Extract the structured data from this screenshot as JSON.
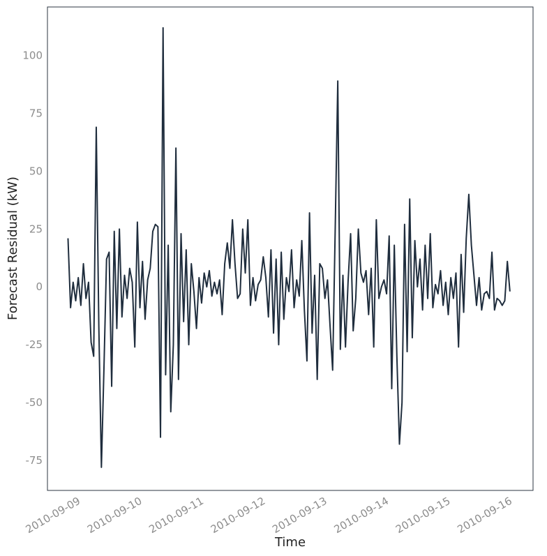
{
  "chart_data": {
    "type": "line",
    "xlabel": "Time",
    "ylabel": "Forecast Residual (kW)",
    "xlim": [
      -8,
      181
    ],
    "xticks": [
      {
        "value": 4,
        "label": "2010-09-09"
      },
      {
        "value": 28,
        "label": "2010-09-10"
      },
      {
        "value": 52,
        "label": "2010-09-11"
      },
      {
        "value": 76,
        "label": "2010-09-12"
      },
      {
        "value": 100,
        "label": "2010-09-13"
      },
      {
        "value": 124,
        "label": "2010-09-14"
      },
      {
        "value": 148,
        "label": "2010-09-15"
      },
      {
        "value": 172,
        "label": "2010-09-16"
      }
    ],
    "ylim": [
      -88,
      121
    ],
    "yticks": [
      -75,
      -50,
      -25,
      0,
      25,
      50,
      75,
      100
    ],
    "grid": false,
    "series": [
      {
        "color": "#1f2d3d",
        "values": [
          21,
          -9,
          2,
          -6,
          4,
          -8,
          10,
          -5,
          2,
          -24,
          -30,
          69,
          -17,
          -78,
          -35,
          12,
          15,
          -43,
          24,
          -18,
          25,
          -13,
          5,
          -5,
          8,
          2,
          -26,
          28,
          -9,
          11,
          -14,
          3,
          8,
          24,
          27,
          26,
          -65,
          112,
          -38,
          18,
          -54,
          -25,
          60,
          -40,
          23,
          -15,
          16,
          -25,
          10,
          -2,
          -18,
          4,
          -7,
          6,
          0,
          7,
          -4,
          2,
          -3,
          3,
          -12,
          10,
          19,
          8,
          29,
          10,
          -5,
          -3,
          25,
          6,
          29,
          -8,
          4,
          -6,
          1,
          3,
          13,
          4,
          -13,
          16,
          -20,
          12,
          -25,
          15,
          -14,
          4,
          -2,
          16,
          -9,
          3,
          -4,
          20,
          -10,
          -32,
          32,
          -20,
          5,
          -40,
          10,
          8,
          -5,
          3,
          -17,
          -36,
          25,
          89,
          -27,
          5,
          -26,
          2,
          23,
          -19,
          -5,
          25,
          6,
          2,
          7,
          -12,
          8,
          -26,
          29,
          -5,
          0,
          3,
          -3,
          22,
          -44,
          18,
          -30,
          -68,
          -50,
          27,
          -28,
          38,
          -22,
          20,
          0,
          12,
          -10,
          18,
          -5,
          23,
          -9,
          1,
          -3,
          7,
          -8,
          2,
          -12,
          4,
          -5,
          6,
          -26,
          14,
          -11,
          21,
          40,
          18,
          5,
          -8,
          4,
          -10,
          -3,
          -2,
          -5,
          15,
          -10,
          -5,
          -6,
          -8,
          -6,
          11,
          -2
        ]
      }
    ]
  }
}
